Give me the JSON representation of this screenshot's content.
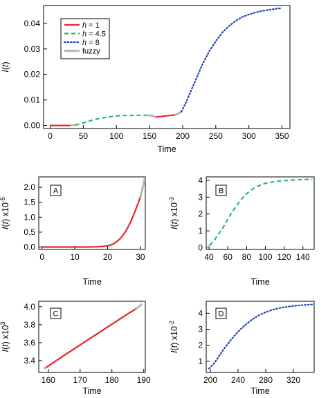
{
  "chart_data": [
    {
      "id": "main",
      "type": "line",
      "xlabel": "Time",
      "ylabel": "I(t)",
      "xlim": [
        -10,
        362
      ],
      "ylim": [
        -0.0012,
        0.047
      ],
      "xticks": [
        0,
        50,
        100,
        150,
        200,
        250,
        300,
        350
      ],
      "xtick_labels": [
        "0",
        "50",
        "100",
        "150",
        "200",
        "250",
        "300",
        "350"
      ],
      "yticks": [
        0.0,
        0.01,
        0.02,
        0.03,
        0.04
      ],
      "ytick_labels": [
        "0.00",
        "0.01",
        "0.02",
        "0.03",
        "0.04"
      ],
      "legend": {
        "position": "top-left",
        "entries": [
          {
            "label": "h = 1",
            "color": "#e8262a",
            "style": "solid"
          },
          {
            "label": "h = 4.5",
            "color": "#2bb673",
            "style": "dashed"
          },
          {
            "label": "h = 8",
            "color": "#1f3fb5",
            "style": "dotted"
          },
          {
            "label": "fuzzy",
            "color": "#b9b9b9",
            "style": "solid"
          }
        ]
      },
      "series": [
        {
          "name": "h = 1",
          "color": "#e8262a",
          "style": "solid",
          "points": [
            [
              0,
              0.0
            ],
            [
              10,
              0.0
            ],
            [
              20,
              0.0
            ],
            [
              28,
              0.0
            ],
            [
              30,
              2e-05
            ]
          ]
        },
        {
          "name": "h = 1",
          "color": "#e8262a",
          "style": "solid",
          "points": [
            [
              159,
              0.0033
            ],
            [
              165,
              0.00345
            ],
            [
              170,
              0.0036
            ],
            [
              175,
              0.00375
            ],
            [
              180,
              0.0039
            ],
            [
              188,
              0.0041
            ]
          ]
        },
        {
          "name": "fuzzy",
          "color": "#b9b9b9",
          "style": "solid",
          "points": [
            [
              30,
              2e-05
            ],
            [
              35,
              0.0001
            ],
            [
              40,
              0.0003
            ]
          ]
        },
        {
          "name": "fuzzy",
          "color": "#b9b9b9",
          "style": "solid",
          "points": [
            [
              148,
              0.004
            ],
            [
              154,
              0.0038
            ],
            [
              159,
              0.0033
            ]
          ]
        },
        {
          "name": "fuzzy",
          "color": "#b9b9b9",
          "style": "solid",
          "points": [
            [
              188,
              0.0041
            ],
            [
              193,
              0.0046
            ],
            [
              198,
              0.0054
            ]
          ]
        },
        {
          "name": "h = 4.5",
          "color": "#2bb673",
          "style": "dashed",
          "points": [
            [
              38,
              0.0002
            ],
            [
              45,
              0.0006
            ],
            [
              50,
              0.001
            ],
            [
              60,
              0.0018
            ],
            [
              70,
              0.0025
            ],
            [
              80,
              0.003
            ],
            [
              90,
              0.0034
            ],
            [
              100,
              0.0037
            ],
            [
              110,
              0.0039
            ],
            [
              120,
              0.0039
            ],
            [
              130,
              0.004
            ],
            [
              140,
              0.004
            ],
            [
              148,
              0.004
            ]
          ]
        },
        {
          "name": "h = 8",
          "color": "#1f3fb5",
          "style": "dotted",
          "points": [
            [
              198,
              0.0054
            ],
            [
              205,
              0.009
            ],
            [
              210,
              0.012
            ],
            [
              220,
              0.018
            ],
            [
              230,
              0.024
            ],
            [
              240,
              0.029
            ],
            [
              250,
              0.033
            ],
            [
              260,
              0.0365
            ],
            [
              270,
              0.039
            ],
            [
              280,
              0.041
            ],
            [
              290,
              0.0425
            ],
            [
              300,
              0.0435
            ],
            [
              310,
              0.0443
            ],
            [
              320,
              0.0449
            ],
            [
              330,
              0.0453
            ],
            [
              340,
              0.0457
            ],
            [
              350,
              0.046
            ]
          ]
        }
      ]
    },
    {
      "id": "A",
      "type": "line",
      "panel_label": "A",
      "xlabel": "Time",
      "ylabel": "I(t) x10^-5",
      "xlim": [
        -1,
        31.5
      ],
      "ylim": [
        -0.08,
        2.35
      ],
      "xticks": [
        0,
        10,
        20,
        30
      ],
      "xtick_labels": [
        "0",
        "10",
        "20",
        "30"
      ],
      "yticks": [
        0.0,
        0.5,
        1.0,
        1.5,
        2.0
      ],
      "ytick_labels": [
        "0.0",
        "0.5",
        "1.0",
        "1.5",
        "2.0"
      ],
      "series": [
        {
          "name": "h = 1",
          "color": "#e8262a",
          "style": "solid",
          "points": [
            [
              0,
              0.0
            ],
            [
              5,
              0.0
            ],
            [
              10,
              0.0
            ],
            [
              14,
              0.0
            ],
            [
              16,
              0.005
            ],
            [
              18,
              0.015
            ],
            [
              20,
              0.04
            ],
            [
              21,
              0.07
            ],
            [
              22,
              0.12
            ],
            [
              23,
              0.2
            ],
            [
              24,
              0.3
            ],
            [
              25,
              0.44
            ],
            [
              26,
              0.62
            ],
            [
              27,
              0.84
            ],
            [
              28,
              1.1
            ],
            [
              29,
              1.38
            ],
            [
              29.5,
              1.52
            ],
            [
              30,
              1.68
            ]
          ]
        },
        {
          "name": "fuzzy",
          "color": "#b9b9b9",
          "style": "solid",
          "points": [
            [
              30,
              1.68
            ],
            [
              30.5,
              1.9
            ],
            [
              31,
              2.12
            ],
            [
              31.3,
              2.3
            ]
          ]
        }
      ]
    },
    {
      "id": "B",
      "type": "line",
      "panel_label": "B",
      "xlabel": "Time",
      "ylabel": "I(t) x10^-3",
      "xlim": [
        37,
        152
      ],
      "ylim": [
        -0.1,
        4.2
      ],
      "xticks": [
        40,
        60,
        80,
        100,
        120,
        140
      ],
      "xtick_labels": [
        "40",
        "60",
        "80",
        "100",
        "120",
        "140"
      ],
      "yticks": [
        0,
        1,
        2,
        3,
        4
      ],
      "ytick_labels": [
        "0",
        "1",
        "2",
        "3",
        "4"
      ],
      "series": [
        {
          "name": "fuzzy",
          "color": "#b9b9b9",
          "style": "solid",
          "points": [
            [
              37.5,
              0.0
            ],
            [
              39,
              0.05
            ],
            [
              41,
              0.15
            ]
          ]
        },
        {
          "name": "h = 4.5",
          "color": "#2bb673",
          "style": "dashed",
          "points": [
            [
              41,
              0.15
            ],
            [
              45,
              0.4
            ],
            [
              50,
              0.8
            ],
            [
              55,
              1.2
            ],
            [
              60,
              1.7
            ],
            [
              65,
              2.15
            ],
            [
              70,
              2.55
            ],
            [
              75,
              2.9
            ],
            [
              80,
              3.2
            ],
            [
              85,
              3.42
            ],
            [
              90,
              3.6
            ],
            [
              95,
              3.72
            ],
            [
              100,
              3.82
            ],
            [
              110,
              3.92
            ],
            [
              120,
              3.98
            ],
            [
              130,
              4.02
            ],
            [
              140,
              4.04
            ],
            [
              150,
              4.05
            ]
          ]
        }
      ]
    },
    {
      "id": "C",
      "type": "line",
      "panel_label": "C",
      "xlabel": "Time",
      "ylabel": "I(t) x10^3",
      "xlim": [
        157,
        190.5
      ],
      "ylim": [
        3.27,
        4.06
      ],
      "xticks": [
        160,
        170,
        180,
        190
      ],
      "xtick_labels": [
        "160",
        "170",
        "180",
        "190"
      ],
      "yticks": [
        3.4,
        3.6,
        3.8,
        4.0
      ],
      "ytick_labels": [
        "3.4",
        "3.6",
        "3.8",
        "4.0"
      ],
      "series": [
        {
          "name": "fuzzy",
          "color": "#b9b9b9",
          "style": "solid",
          "points": [
            [
              158.6,
              3.31
            ],
            [
              159.3,
              3.325
            ]
          ]
        },
        {
          "name": "h = 1",
          "color": "#e8262a",
          "style": "solid",
          "points": [
            [
              159.3,
              3.325
            ],
            [
              165,
              3.46
            ],
            [
              170,
              3.575
            ],
            [
              175,
              3.69
            ],
            [
              180,
              3.805
            ],
            [
              185,
              3.92
            ],
            [
              187.5,
              3.975
            ]
          ]
        },
        {
          "name": "fuzzy",
          "color": "#b9b9b9",
          "style": "solid",
          "points": [
            [
              187.5,
              3.975
            ],
            [
              188.5,
              4.0
            ],
            [
              189.5,
              4.03
            ]
          ]
        }
      ]
    },
    {
      "id": "D",
      "type": "line",
      "panel_label": "D",
      "xlabel": "Time",
      "ylabel": "I(t) x10^-2",
      "xlim": [
        194,
        350
      ],
      "ylim": [
        0.3,
        4.75
      ],
      "xticks": [
        200,
        240,
        280,
        320
      ],
      "xtick_labels": [
        "200",
        "240",
        "280",
        "320"
      ],
      "yticks": [
        1,
        2,
        3,
        4
      ],
      "ytick_labels": [
        "1",
        "2",
        "3",
        "4"
      ],
      "series": [
        {
          "name": "h = 8",
          "color": "#1f3fb5",
          "style": "dotted",
          "points": [
            [
              198,
              0.54
            ],
            [
              205,
              0.85
            ],
            [
              210,
              1.15
            ],
            [
              220,
              1.8
            ],
            [
              230,
              2.35
            ],
            [
              240,
              2.85
            ],
            [
              250,
              3.25
            ],
            [
              260,
              3.6
            ],
            [
              270,
              3.87
            ],
            [
              280,
              4.07
            ],
            [
              290,
              4.22
            ],
            [
              300,
              4.33
            ],
            [
              310,
              4.4
            ],
            [
              320,
              4.46
            ],
            [
              330,
              4.5
            ],
            [
              340,
              4.53
            ],
            [
              348,
              4.55
            ]
          ]
        }
      ]
    }
  ]
}
